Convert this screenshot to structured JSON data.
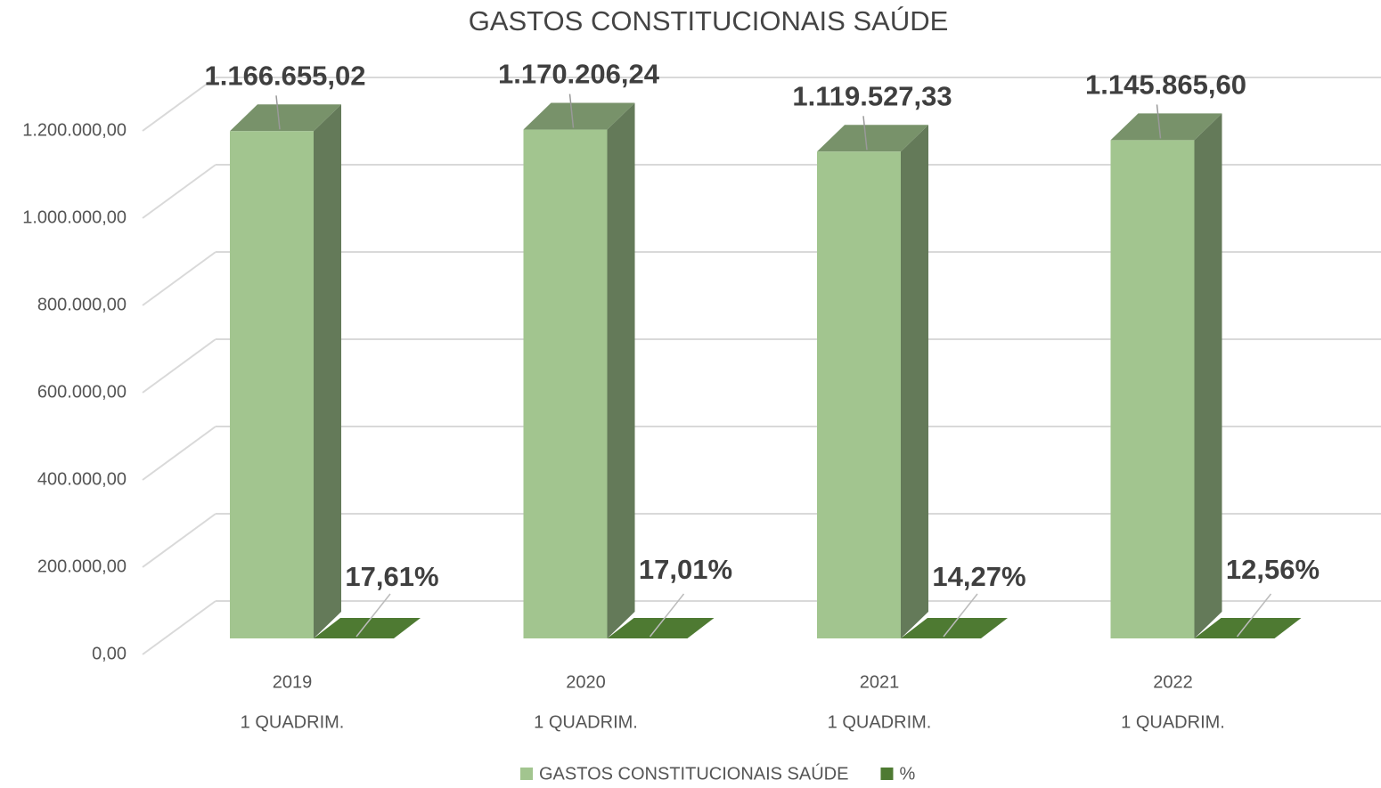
{
  "chart_data": {
    "type": "bar3d",
    "title": "GASTOS CONSTITUCIONAIS SAÚDE",
    "categories": [
      [
        "2019",
        "1 QUADRIM."
      ],
      [
        "2020",
        "1 QUADRIM."
      ],
      [
        "2021",
        "1 QUADRIM."
      ],
      [
        "2022",
        "1 QUADRIM."
      ]
    ],
    "series": [
      {
        "name": "GASTOS CONSTITUCIONAIS SAÚDE",
        "color": "#a2c58f",
        "values": [
          1166655.02,
          1170206.24,
          1119527.33,
          1145865.6
        ],
        "value_labels": [
          "1.166.655,02",
          "1.170.206,24",
          "1.119.527,33",
          "1.145.865,60"
        ]
      },
      {
        "name": "%",
        "color": "#4e7a32",
        "values": [
          17.61,
          17.01,
          14.27,
          12.56
        ],
        "value_labels": [
          "17,61%",
          "17,01%",
          "14,27%",
          "12,56%"
        ]
      }
    ],
    "ylim": [
      0,
      1200000
    ],
    "yticks": [
      {
        "value": 0,
        "label": "0,00"
      },
      {
        "value": 200000,
        "label": "200.000,00"
      },
      {
        "value": 400000,
        "label": "400.000,00"
      },
      {
        "value": 600000,
        "label": "600.000,00"
      },
      {
        "value": 800000,
        "label": "800.000,00"
      },
      {
        "value": 1000000,
        "label": "1.000.000,00"
      },
      {
        "value": 1200000,
        "label": "1.200.000,00"
      }
    ],
    "grid": true,
    "legend": "bottom"
  }
}
